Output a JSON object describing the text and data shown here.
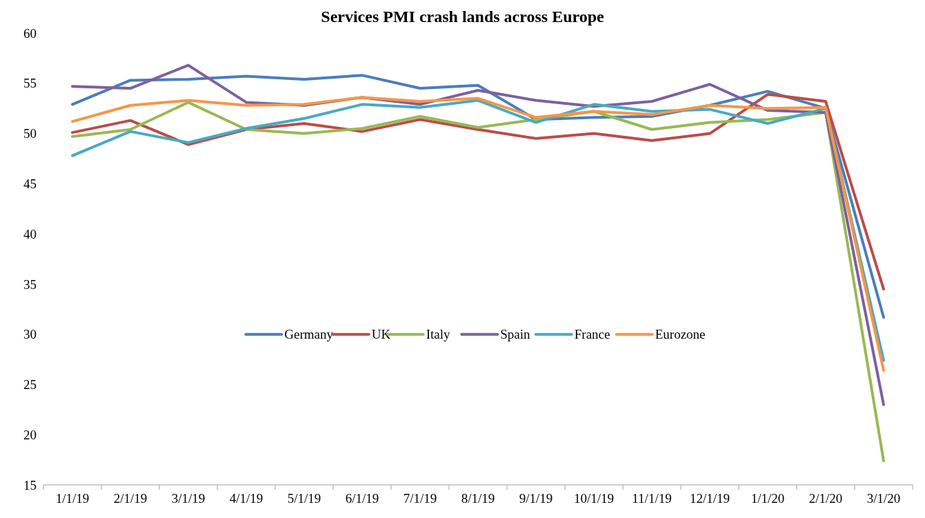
{
  "chart_data": {
    "type": "line",
    "title": "Services PMI crash lands across Europe",
    "categories": [
      "1/1/19",
      "2/1/19",
      "3/1/19",
      "4/1/19",
      "5/1/19",
      "6/1/19",
      "7/1/19",
      "8/1/19",
      "9/1/19",
      "10/1/19",
      "11/1/19",
      "12/1/19",
      "1/1/20",
      "2/1/20",
      "3/1/20"
    ],
    "series": [
      {
        "name": "Germany",
        "color": "#4a7ebb",
        "values": [
          52.9,
          55.3,
          55.4,
          55.7,
          55.4,
          55.8,
          54.5,
          54.8,
          51.4,
          51.6,
          51.7,
          52.8,
          54.2,
          52.5,
          31.7
        ]
      },
      {
        "name": "UK",
        "color": "#be4b48",
        "values": [
          50.1,
          51.3,
          48.9,
          50.4,
          51.0,
          50.2,
          51.4,
          50.4,
          49.5,
          50.0,
          49.3,
          50.0,
          53.9,
          53.2,
          34.5
        ]
      },
      {
        "name": "Italy",
        "color": "#98b954",
        "values": [
          49.7,
          50.4,
          53.1,
          50.4,
          50.0,
          50.5,
          51.7,
          50.6,
          51.4,
          52.2,
          50.4,
          51.1,
          51.4,
          52.1,
          17.4
        ]
      },
      {
        "name": "Spain",
        "color": "#7d60a0",
        "values": [
          54.7,
          54.5,
          56.8,
          53.1,
          52.8,
          53.6,
          52.9,
          54.3,
          53.3,
          52.7,
          53.2,
          54.9,
          52.3,
          52.1,
          23.0
        ]
      },
      {
        "name": "France",
        "color": "#46aac5",
        "values": [
          47.8,
          50.2,
          49.1,
          50.5,
          51.5,
          52.9,
          52.6,
          53.3,
          51.1,
          52.9,
          52.2,
          52.4,
          51.0,
          52.5,
          27.4
        ]
      },
      {
        "name": "Eurozone",
        "color": "#f79646",
        "values": [
          51.2,
          52.8,
          53.3,
          52.8,
          52.9,
          53.6,
          53.2,
          53.5,
          51.6,
          52.2,
          51.9,
          52.8,
          52.5,
          52.6,
          26.4
        ]
      }
    ],
    "ylim": [
      15,
      60
    ],
    "yticks": [
      15,
      20,
      25,
      30,
      35,
      40,
      45,
      50,
      55,
      60
    ],
    "legend": "bottom"
  }
}
